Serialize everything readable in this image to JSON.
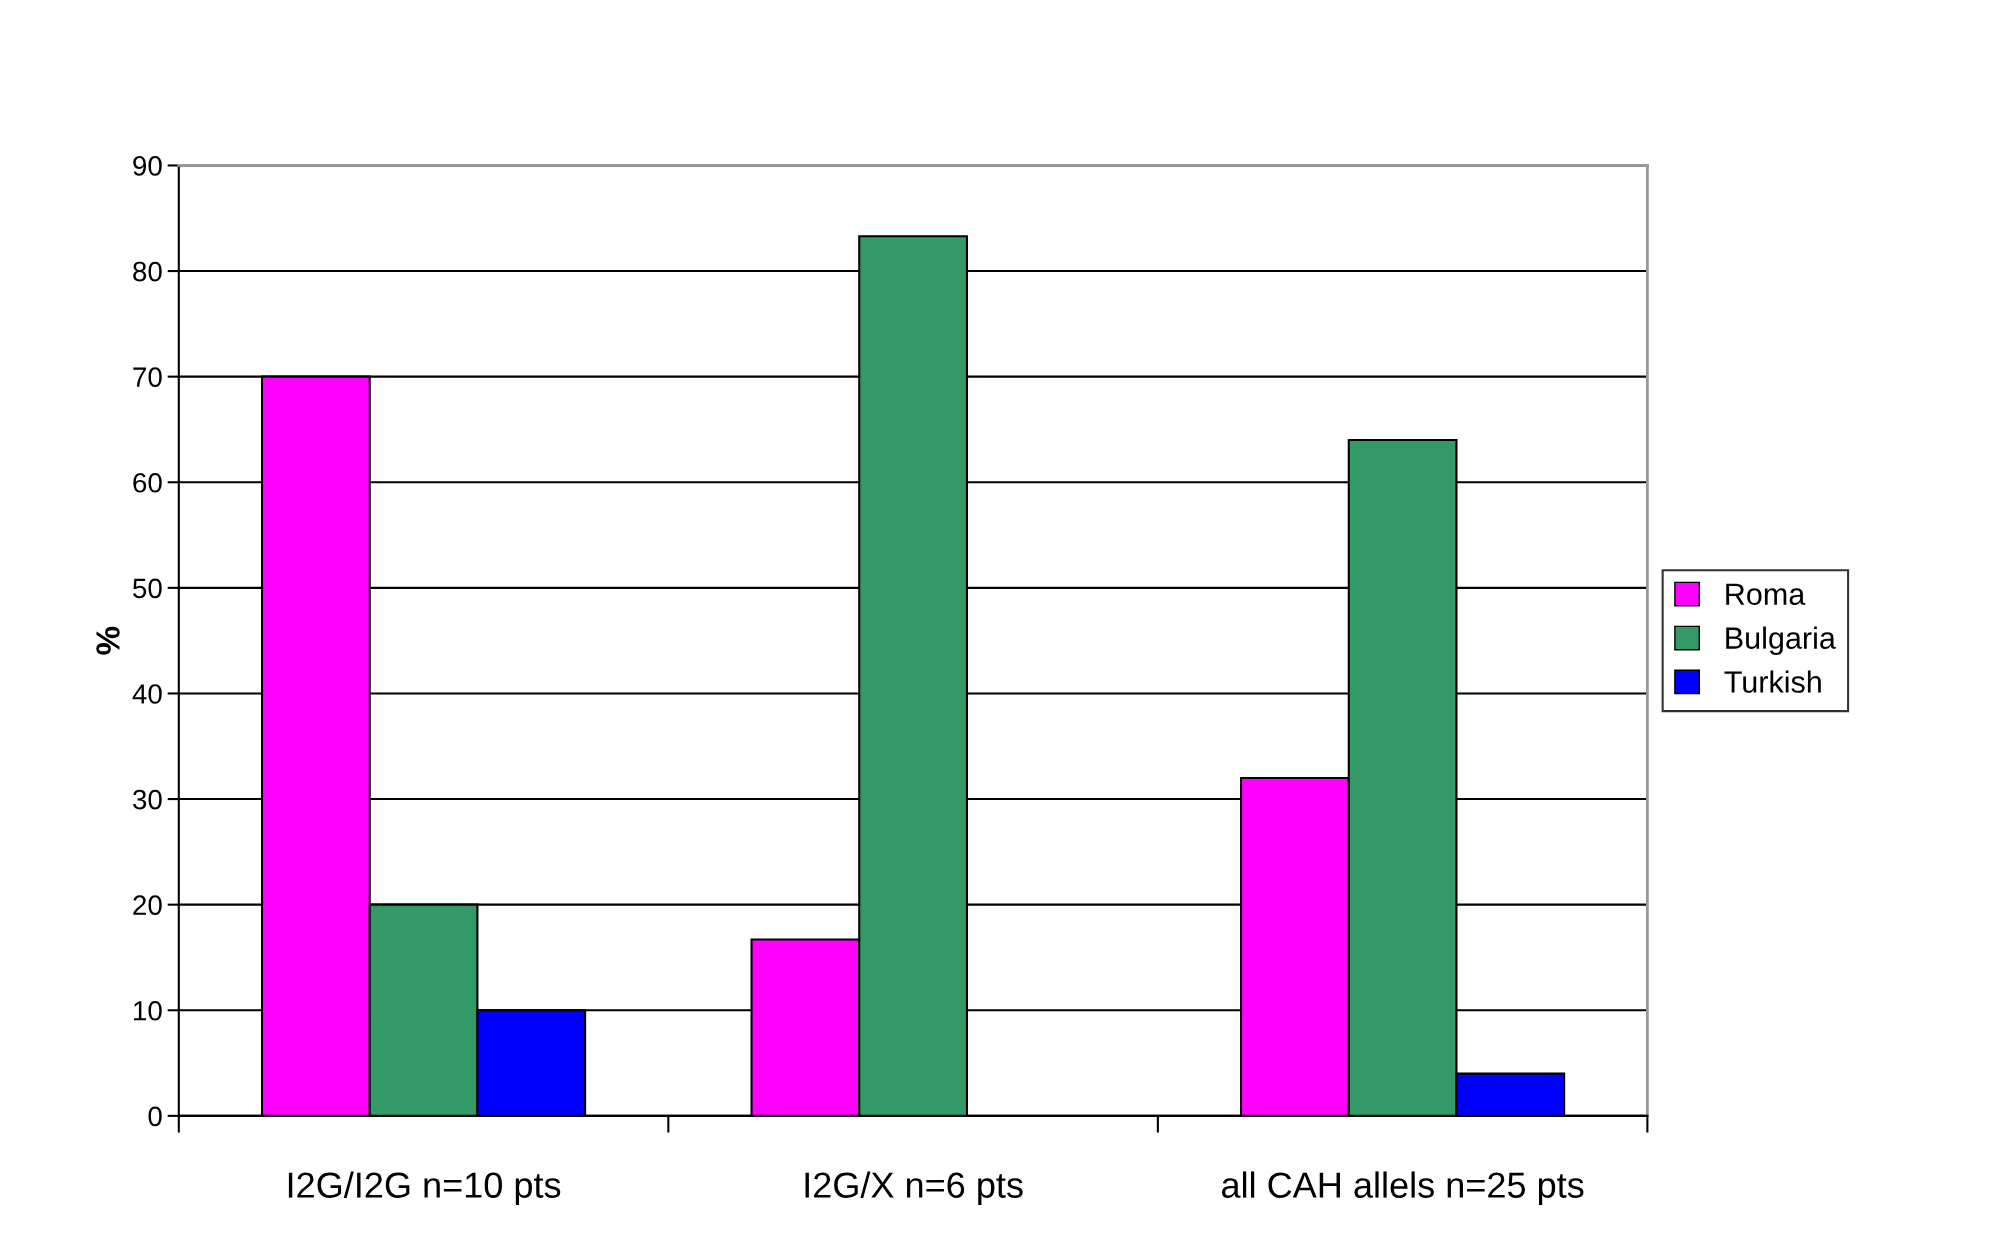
{
  "chart_data": {
    "type": "bar",
    "ylabel": "%",
    "categories": [
      "I2G/I2G n=10 pts",
      "I2G/X n=6 pts",
      "all CAH allels n=25 pts"
    ],
    "series": [
      {
        "name": "Roma",
        "color": "#ff00ff",
        "values": [
          70,
          16.7,
          32
        ]
      },
      {
        "name": "Bulgaria",
        "color": "#339966",
        "values": [
          20,
          83.3,
          64
        ]
      },
      {
        "name": "Turkish",
        "color": "#0000ff",
        "values": [
          10,
          0,
          4
        ]
      }
    ],
    "ylim": [
      0,
      90
    ],
    "yticks": [
      0,
      10,
      20,
      30,
      40,
      50,
      60,
      70,
      80,
      90
    ],
    "grid": "y",
    "legend": "right"
  }
}
